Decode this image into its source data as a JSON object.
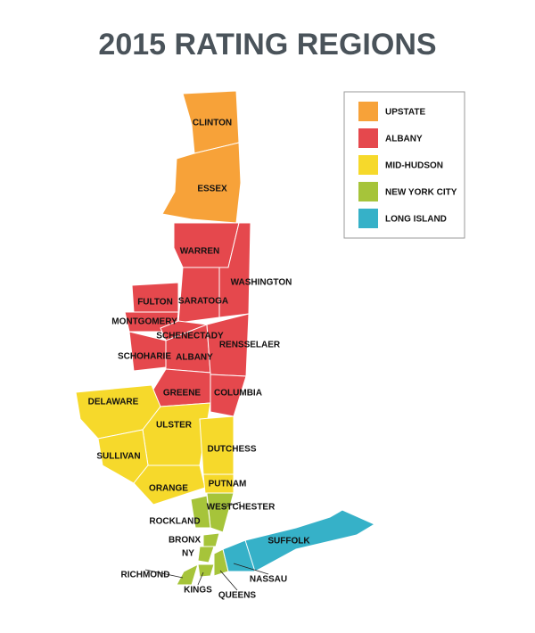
{
  "title": "2015 RATING REGIONS",
  "regions": [
    {
      "name": "UPSTATE",
      "color": "#f7a239",
      "counties": [
        "CLINTON",
        "ESSEX"
      ]
    },
    {
      "name": "ALBANY",
      "color": "#e5484d",
      "counties": [
        "WARREN",
        "WASHINGTON",
        "FULTON",
        "SARATOGA",
        "MONTGOMERY",
        "SCHENECTADY",
        "SCHOHARIE",
        "ALBANY",
        "RENSSELAER",
        "GREENE",
        "COLUMBIA"
      ]
    },
    {
      "name": "MID-HUDSON",
      "color": "#f6d92b",
      "counties": [
        "DELAWARE",
        "ULSTER",
        "SULLIVAN",
        "DUTCHESS",
        "ORANGE",
        "PUTNAM"
      ]
    },
    {
      "name": "NEW YORK CITY",
      "color": "#a6c43a",
      "counties": [
        "WESTCHESTER",
        "ROCKLAND",
        "BRONX",
        "NY",
        "RICHMOND",
        "KINGS",
        "QUEENS"
      ]
    },
    {
      "name": "LONG ISLAND",
      "color": "#36b1c8",
      "counties": [
        "SUFFOLK",
        "NASSAU"
      ]
    }
  ]
}
